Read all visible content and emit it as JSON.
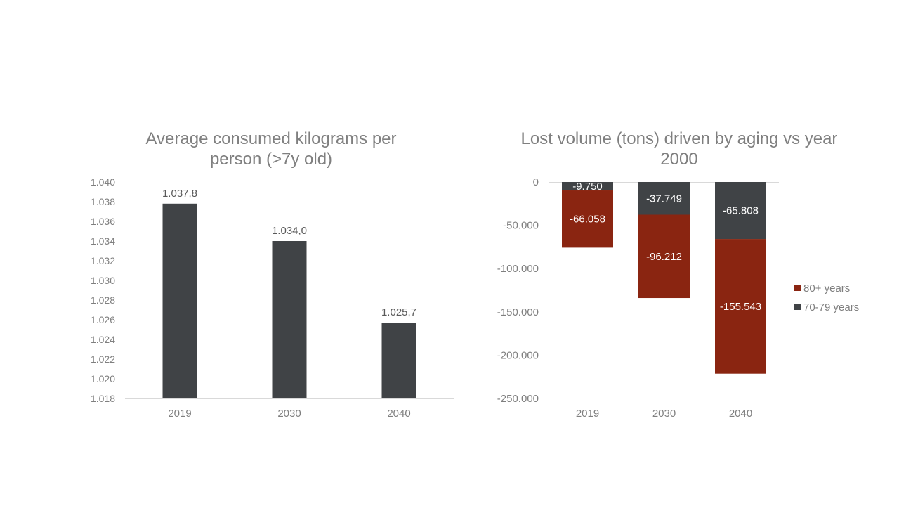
{
  "chart_data": [
    {
      "type": "bar",
      "title": "Average consumed kilograms per person (>7y old)",
      "categories": [
        "2019",
        "2030",
        "2040"
      ],
      "values": [
        1037.8,
        1034.0,
        1025.7
      ],
      "data_labels": [
        "1.037,8",
        "1.034,0",
        "1.025,7"
      ],
      "yticks": [
        1.04,
        1.038,
        1.036,
        1.034,
        1.032,
        1.03,
        1.028,
        1.026,
        1.024,
        1.022,
        1.02,
        1.018
      ],
      "ytick_values": [
        1040,
        1038,
        1036,
        1034,
        1032,
        1030,
        1028,
        1026,
        1024,
        1022,
        1020,
        1018
      ],
      "ytick_labels": [
        "1.040",
        "1.038",
        "1.036",
        "1.034",
        "1.032",
        "1.030",
        "1.028",
        "1.026",
        "1.024",
        "1.022",
        "1.020",
        "1.018"
      ],
      "ylim": [
        1018,
        1040
      ],
      "xlabel": "",
      "ylabel": "",
      "grid": false,
      "bar_color": "#404346"
    },
    {
      "type": "bar",
      "stacked": true,
      "title": "Lost volume (tons) driven by aging vs year 2000",
      "categories": [
        "2019",
        "2030",
        "2040"
      ],
      "series": [
        {
          "name": "70-79 years",
          "values": [
            -9750,
            -37749,
            -65808
          ],
          "labels": [
            "-9.750",
            "-37.749",
            "-65.808"
          ],
          "color": "#404346"
        },
        {
          "name": "80+ years",
          "values": [
            -66058,
            -96212,
            -155543
          ],
          "labels": [
            "-66.058",
            "-96.212",
            "-155.543"
          ],
          "color": "#8a2511"
        }
      ],
      "ytick_values": [
        0,
        -50000,
        -100000,
        -150000,
        -200000,
        -250000
      ],
      "ytick_labels": [
        "0",
        "-50.000",
        "-100.000",
        "-150.000",
        "-200.000",
        "-250.000"
      ],
      "ylim": [
        -250000,
        0
      ],
      "legend_position": "right",
      "legend_order": [
        "80+ years",
        "70-79 years"
      ],
      "xlabel": "",
      "ylabel": "",
      "grid": false
    }
  ],
  "colors": {
    "title": "#7f7f7f",
    "tick": "#7f7f7f",
    "data_label_dark": "#595959",
    "data_label_light": "#ffffff",
    "axis": "#d9d9d9"
  }
}
